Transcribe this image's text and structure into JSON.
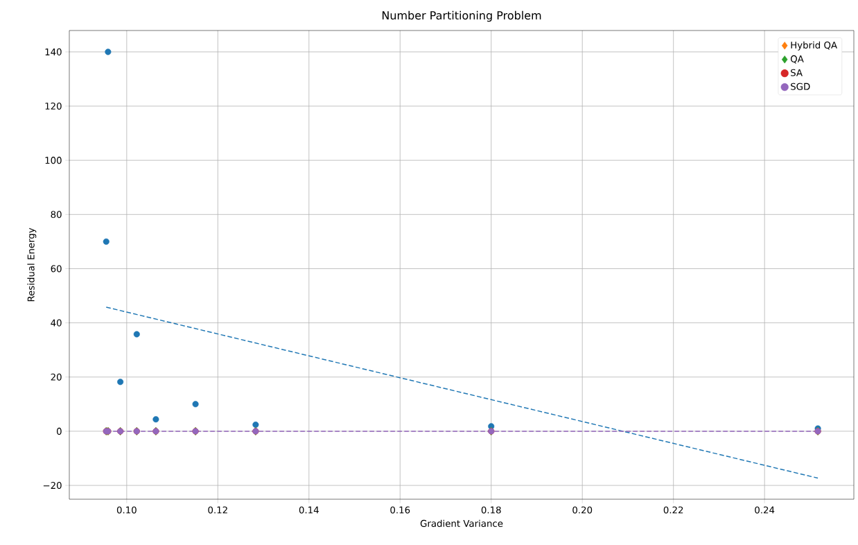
{
  "chart_data": {
    "type": "scatter",
    "title": "Number Partitioning Problem",
    "xlabel": "Gradient Variance",
    "ylabel": "Residual Energy",
    "xlim": [
      0.0874,
      0.2596
    ],
    "ylim": [
      -25.1,
      147.9
    ],
    "xticks": [
      {
        "value": 0.1,
        "label": "0.10"
      },
      {
        "value": 0.12,
        "label": "0.12"
      },
      {
        "value": 0.14,
        "label": "0.14"
      },
      {
        "value": 0.16,
        "label": "0.16"
      },
      {
        "value": 0.18,
        "label": "0.18"
      },
      {
        "value": 0.2,
        "label": "0.20"
      },
      {
        "value": 0.22,
        "label": "0.22"
      },
      {
        "value": 0.24,
        "label": "0.24"
      }
    ],
    "yticks": [
      {
        "value": -20,
        "label": "−20"
      },
      0,
      20,
      40,
      60,
      80,
      100,
      120,
      140
    ],
    "grid": true,
    "legend": "top right",
    "series": [
      {
        "marker": "circle",
        "color": "#1f77b4",
        "x": [
          0.0959,
          0.0955,
          0.0986,
          0.1022,
          0.1064,
          0.1151,
          0.1283,
          0.18,
          0.2517
        ],
        "values": [
          140,
          70,
          18.2,
          35.8,
          4.4,
          10,
          2.4,
          1.8,
          1.0
        ]
      },
      {
        "type": "line",
        "line_style": "dashed",
        "color": "#1f77b4",
        "x": [
          0.0955,
          0.2517
        ],
        "values": [
          45.8,
          -17.3
        ]
      },
      {
        "name": "Hybrid QA",
        "marker": "diamond",
        "color": "#ff7f0e",
        "x": [
          0.0959,
          0.0955,
          0.0986,
          0.1022,
          0.1064,
          0.1151,
          0.1283,
          0.18,
          0.2517
        ],
        "values": [
          0,
          0,
          0,
          0,
          0,
          0,
          0,
          0,
          0
        ]
      },
      {
        "name": "QA",
        "marker": "diamond",
        "color": "#2ca02c",
        "x": [
          0.0959,
          0.0955,
          0.0986,
          0.1022,
          0.1064,
          0.1151,
          0.1283,
          0.18,
          0.2517
        ],
        "values": [
          0,
          0,
          0,
          0,
          0,
          0,
          0,
          0,
          0
        ]
      },
      {
        "name": "SA",
        "marker": "circle",
        "color": "#d62728",
        "x": [
          0.0959,
          0.0955,
          0.0986,
          0.1022,
          0.1064,
          0.1151,
          0.1283,
          0.18,
          0.2517
        ],
        "values": [
          0,
          0,
          0,
          0,
          0,
          0,
          0,
          0,
          0
        ]
      },
      {
        "name": "SGD",
        "marker": "circle",
        "color": "#9467bd",
        "x": [
          0.0959,
          0.0955,
          0.0986,
          0.1022,
          0.1064,
          0.1151,
          0.1283,
          0.18,
          0.2517
        ],
        "values": [
          0,
          0,
          0,
          0,
          0,
          0,
          0,
          0,
          0
        ]
      },
      {
        "type": "line",
        "line_style": "dashed",
        "color": "#9467bd",
        "x": [
          0.0955,
          0.2517
        ],
        "values": [
          0,
          0
        ]
      }
    ]
  }
}
